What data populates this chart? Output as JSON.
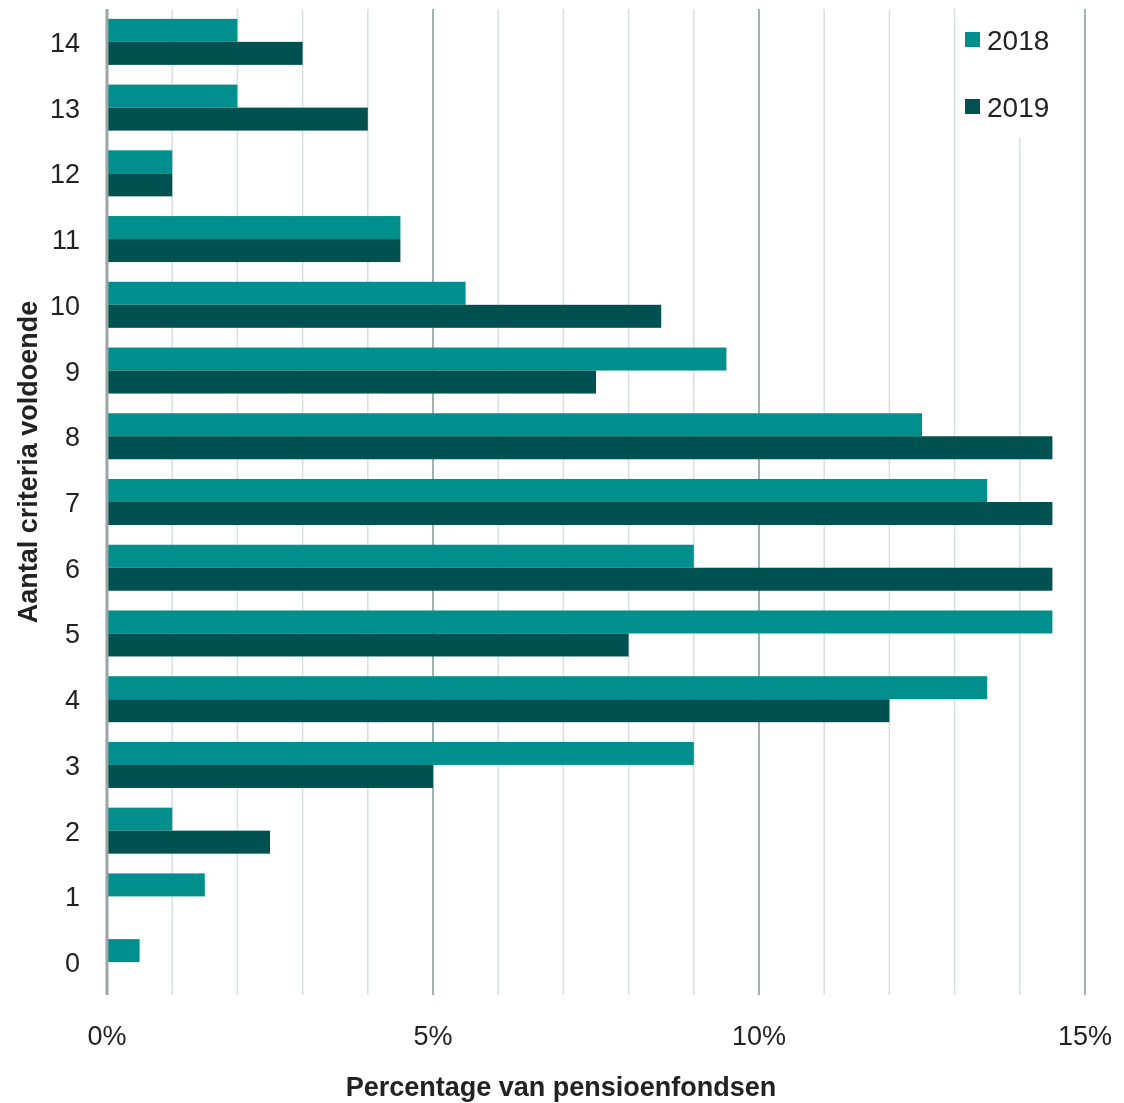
{
  "chart_data": {
    "type": "bar",
    "orientation": "horizontal",
    "xlabel": "Percentage van pensioenfondsen",
    "ylabel": "Aantal criteria voldoende",
    "categories": [
      "14",
      "13",
      "12",
      "11",
      "10",
      "9",
      "8",
      "7",
      "6",
      "5",
      "4",
      "3",
      "2",
      "1",
      "0"
    ],
    "series": [
      {
        "name": "2018",
        "color": "#008f8c",
        "values": [
          2,
          2,
          1,
          4.5,
          5.5,
          9.5,
          12.5,
          13.5,
          9,
          14.5,
          13.5,
          9,
          1,
          1.5,
          0.5
        ]
      },
      {
        "name": "2019",
        "color": "#00514f",
        "values": [
          3,
          4,
          1,
          4.5,
          8.5,
          7.5,
          14.5,
          14.5,
          14.5,
          8,
          12,
          5,
          2.5,
          0,
          0
        ]
      }
    ],
    "xlim": [
      0,
      15
    ],
    "xticks": [
      {
        "value": 0,
        "label": "0%"
      },
      {
        "value": 1,
        "label": null
      },
      {
        "value": 2,
        "label": null
      },
      {
        "value": 3,
        "label": null
      },
      {
        "value": 4,
        "label": null
      },
      {
        "value": 5,
        "label": "5%"
      },
      {
        "value": 6,
        "label": null
      },
      {
        "value": 7,
        "label": null
      },
      {
        "value": 8,
        "label": null
      },
      {
        "value": 9,
        "label": null
      },
      {
        "value": 10,
        "label": "10%"
      },
      {
        "value": 11,
        "label": null
      },
      {
        "value": 12,
        "label": null
      },
      {
        "value": 13,
        "label": null
      },
      {
        "value": 14,
        "label": null
      },
      {
        "value": 15,
        "label": "15%"
      }
    ],
    "grid": "x",
    "legend": "top right"
  }
}
